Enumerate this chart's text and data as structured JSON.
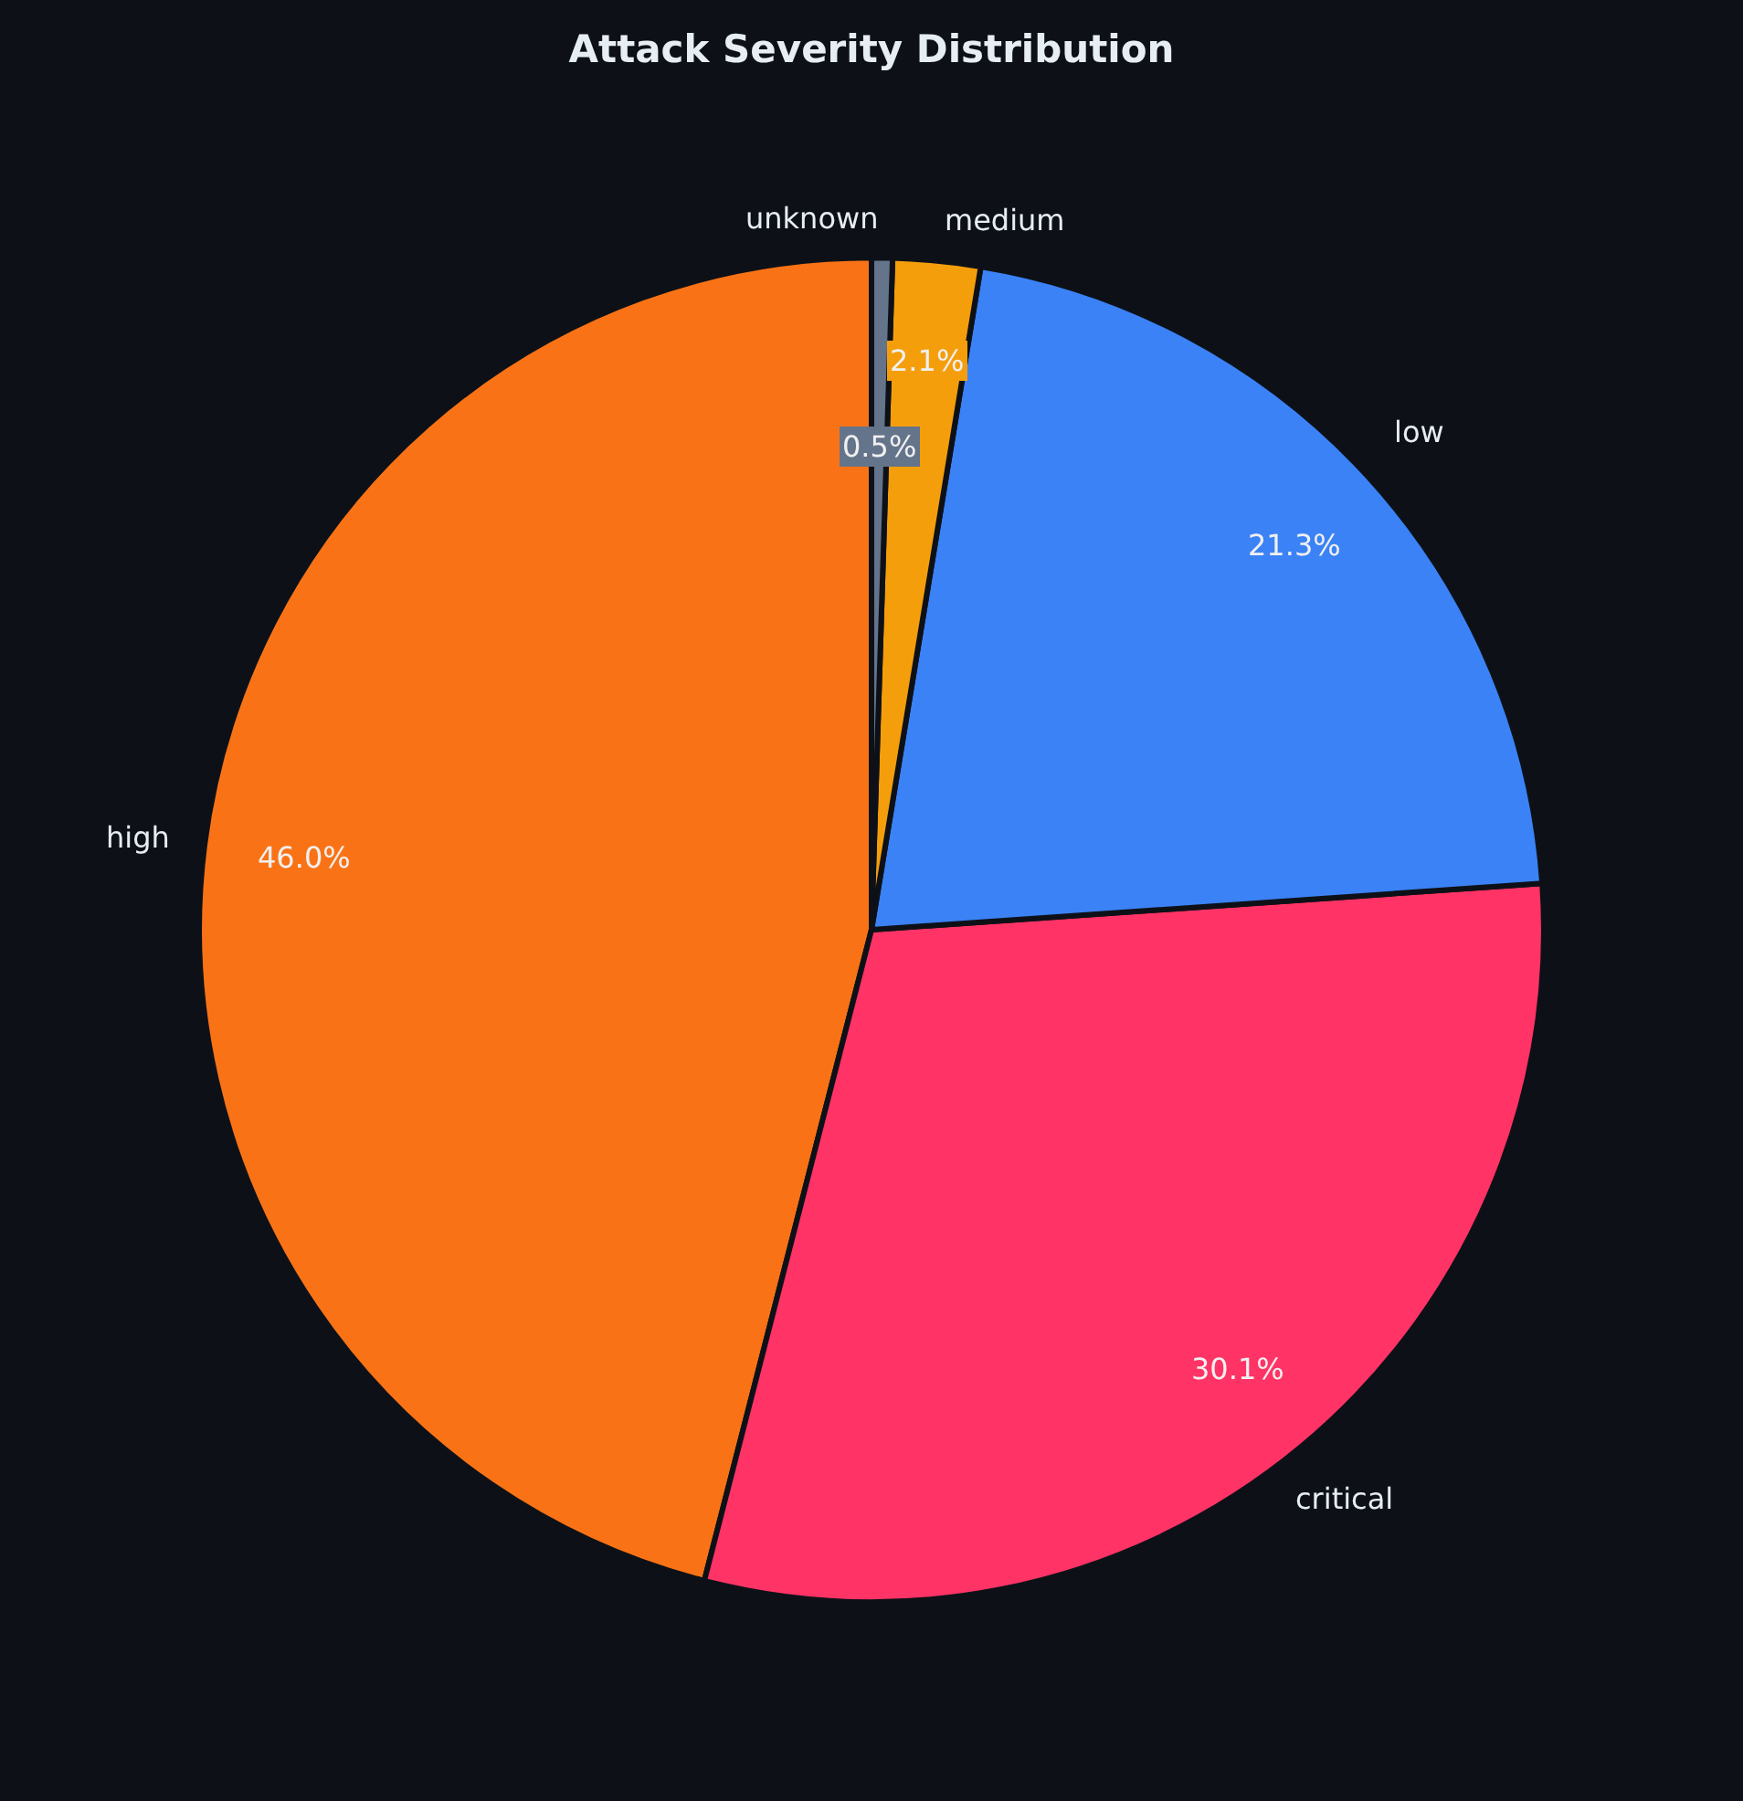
{
  "chart_data": {
    "type": "pie",
    "title": "Attack Severity Distribution",
    "categories": [
      "high",
      "critical",
      "low",
      "medium",
      "unknown"
    ],
    "values": [
      46.0,
      30.1,
      21.3,
      2.1,
      0.5
    ],
    "colors": [
      "#f97316",
      "#ff3366",
      "#3b82f6",
      "#f59e0b",
      "#64748b"
    ],
    "value_labels": [
      "46.0%",
      "30.1%",
      "21.3%",
      "2.1%",
      "0.5%"
    ],
    "legend": false
  }
}
